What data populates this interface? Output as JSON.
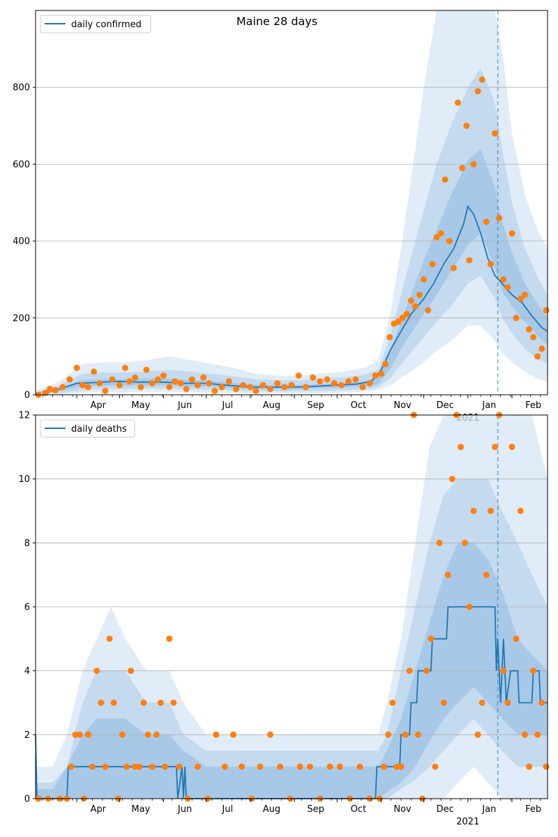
{
  "chart_data": [
    {
      "type": "line",
      "title": "Maine 28 days",
      "legend": "daily confirmed",
      "legend_position": "top-left",
      "grid": "horizontal",
      "ylim": [
        0,
        1000
      ],
      "yticks": [
        0,
        200,
        400,
        600,
        800
      ],
      "xlim": [
        "2020-03-03",
        "2021-02-26"
      ],
      "current_date_marker": "2021-01-22",
      "series_line": {
        "name": "daily confirmed",
        "color": "#1f77b4",
        "x": [
          "2020-03-10",
          "2020-03-20",
          "2020-04-01",
          "2020-04-15",
          "2020-05-01",
          "2020-05-15",
          "2020-06-01",
          "2020-06-15",
          "2020-07-01",
          "2020-07-15",
          "2020-08-01",
          "2020-08-15",
          "2020-09-01",
          "2020-09-15",
          "2020-10-01",
          "2020-10-15",
          "2020-10-25",
          "2020-11-01",
          "2020-11-08",
          "2020-11-15",
          "2020-11-22",
          "2020-12-01",
          "2020-12-08",
          "2020-12-15",
          "2020-12-22",
          "2020-12-29",
          "2021-01-01",
          "2021-01-05",
          "2021-01-10",
          "2021-01-15",
          "2021-01-20",
          "2021-01-25",
          "2021-02-01",
          "2021-02-08",
          "2021-02-15",
          "2021-02-22",
          "2021-02-26"
        ],
        "values": [
          5,
          15,
          30,
          32,
          35,
          33,
          33,
          30,
          30,
          25,
          20,
          20,
          20,
          22,
          25,
          28,
          35,
          65,
          120,
          165,
          210,
          250,
          290,
          340,
          380,
          445,
          490,
          470,
          420,
          355,
          310,
          290,
          260,
          240,
          205,
          175,
          165
        ]
      },
      "band_colors": [
        "#d6e6f4",
        "#bad4ec",
        "#9fc2e4"
      ],
      "bands": {
        "x": [
          "2020-03-03",
          "2020-03-20",
          "2020-04-05",
          "2020-04-20",
          "2020-05-05",
          "2020-05-20",
          "2020-06-05",
          "2020-06-20",
          "2020-07-05",
          "2020-07-20",
          "2020-08-05",
          "2020-08-20",
          "2020-09-05",
          "2020-09-20",
          "2020-10-05",
          "2020-10-20",
          "2020-10-30",
          "2020-11-08",
          "2020-11-15",
          "2020-11-22",
          "2020-12-01",
          "2020-12-10",
          "2020-12-20",
          "2021-01-01",
          "2021-01-10",
          "2021-01-20",
          "2021-01-25",
          "2021-02-01",
          "2021-02-10",
          "2021-02-20",
          "2021-02-26"
        ],
        "outer_low": [
          0,
          0,
          5,
          8,
          6,
          8,
          8,
          6,
          6,
          4,
          3,
          4,
          3,
          4,
          6,
          8,
          12,
          25,
          45,
          60,
          85,
          115,
          140,
          180,
          180,
          140,
          110,
          85,
          60,
          40,
          35
        ],
        "outer_high": [
          10,
          35,
          80,
          85,
          85,
          90,
          100,
          90,
          80,
          70,
          55,
          50,
          50,
          55,
          60,
          70,
          90,
          220,
          380,
          560,
          800,
          1000,
          1000,
          1000,
          1000,
          1000,
          900,
          680,
          520,
          420,
          380
        ],
        "mid_low": [
          2,
          4,
          12,
          16,
          15,
          16,
          16,
          14,
          13,
          11,
          9,
          9,
          9,
          10,
          12,
          14,
          20,
          45,
          80,
          110,
          150,
          190,
          230,
          290,
          310,
          250,
          200,
          160,
          120,
          90,
          80
        ],
        "mid_high": [
          6,
          25,
          55,
          58,
          58,
          60,
          65,
          60,
          55,
          48,
          40,
          38,
          38,
          42,
          45,
          52,
          65,
          160,
          260,
          360,
          480,
          600,
          700,
          800,
          850,
          760,
          640,
          500,
          380,
          300,
          260
        ],
        "inner_low": [
          4,
          10,
          22,
          24,
          24,
          25,
          25,
          22,
          21,
          18,
          15,
          15,
          15,
          17,
          19,
          22,
          28,
          70,
          120,
          160,
          210,
          260,
          320,
          390,
          420,
          330,
          270,
          230,
          190,
          150,
          130
        ],
        "inner_high": [
          5,
          18,
          38,
          40,
          40,
          42,
          42,
          38,
          36,
          31,
          26,
          25,
          25,
          28,
          31,
          35,
          45,
          120,
          190,
          260,
          350,
          430,
          520,
          610,
          640,
          540,
          450,
          370,
          290,
          230,
          200
        ]
      },
      "series_points": {
        "name": "observed",
        "color": "#ff7f0e",
        "x": [
          "2020-03-05",
          "2020-03-10",
          "2020-03-13",
          "2020-03-17",
          "2020-03-22",
          "2020-03-27",
          "2020-04-01",
          "2020-04-05",
          "2020-04-09",
          "2020-04-13",
          "2020-04-17",
          "2020-04-21",
          "2020-04-26",
          "2020-05-01",
          "2020-05-05",
          "2020-05-08",
          "2020-05-12",
          "2020-05-16",
          "2020-05-20",
          "2020-05-24",
          "2020-05-28",
          "2020-06-01",
          "2020-06-05",
          "2020-06-09",
          "2020-06-13",
          "2020-06-17",
          "2020-06-21",
          "2020-06-25",
          "2020-06-29",
          "2020-07-03",
          "2020-07-07",
          "2020-07-12",
          "2020-07-17",
          "2020-07-22",
          "2020-07-27",
          "2020-08-01",
          "2020-08-05",
          "2020-08-10",
          "2020-08-15",
          "2020-08-20",
          "2020-08-25",
          "2020-08-30",
          "2020-09-04",
          "2020-09-09",
          "2020-09-14",
          "2020-09-19",
          "2020-09-24",
          "2020-09-29",
          "2020-10-04",
          "2020-10-09",
          "2020-10-14",
          "2020-10-19",
          "2020-10-24",
          "2020-10-28",
          "2020-11-01",
          "2020-11-04",
          "2020-11-07",
          "2020-11-10",
          "2020-11-13",
          "2020-11-16",
          "2020-11-19",
          "2020-11-22",
          "2020-11-25",
          "2020-11-28",
          "2020-12-01",
          "2020-12-04",
          "2020-12-07",
          "2020-12-10",
          "2020-12-13",
          "2020-12-16",
          "2020-12-19",
          "2020-12-22",
          "2020-12-25",
          "2020-12-28",
          "2020-12-31",
          "2021-01-02",
          "2021-01-05",
          "2021-01-08",
          "2021-01-11",
          "2021-01-14",
          "2021-01-17",
          "2021-01-20",
          "2021-01-23",
          "2021-01-26",
          "2021-01-29",
          "2021-02-01",
          "2021-02-04",
          "2021-02-07",
          "2021-02-10",
          "2021-02-13",
          "2021-02-16",
          "2021-02-19",
          "2021-02-22",
          "2021-02-25"
        ],
        "values": [
          0,
          5,
          15,
          12,
          20,
          40,
          70,
          25,
          20,
          60,
          30,
          10,
          40,
          25,
          70,
          35,
          45,
          20,
          65,
          30,
          40,
          50,
          20,
          35,
          30,
          15,
          40,
          25,
          45,
          30,
          10,
          20,
          35,
          15,
          25,
          20,
          10,
          25,
          15,
          30,
          20,
          25,
          50,
          20,
          45,
          35,
          40,
          30,
          25,
          35,
          40,
          20,
          30,
          50,
          55,
          80,
          150,
          185,
          190,
          200,
          210,
          245,
          230,
          260,
          300,
          220,
          340,
          410,
          420,
          560,
          400,
          330,
          760,
          590,
          700,
          350,
          600,
          790,
          820,
          450,
          340,
          680,
          460,
          300,
          280,
          420,
          200,
          250,
          260,
          170,
          150,
          100,
          120,
          220
        ]
      },
      "x_ticks": [
        "Apr",
        "May",
        "Jun",
        "Jul",
        "Aug",
        "Sep",
        "Oct",
        "Nov",
        "Dec",
        "Jan",
        "Feb"
      ],
      "x_year_label": "2021"
    },
    {
      "type": "line",
      "title": "",
      "legend": "daily deaths",
      "legend_position": "top-left",
      "grid": "horizontal",
      "ylim": [
        0,
        12
      ],
      "yticks": [
        0,
        2,
        4,
        6,
        8,
        10,
        12
      ],
      "xlim": [
        "2020-03-03",
        "2021-02-26"
      ],
      "current_date_marker": "2021-01-22",
      "series_line": {
        "name": "daily deaths",
        "color": "#1f77b4",
        "x": [
          "2020-03-03",
          "2020-03-04",
          "2020-03-25",
          "2020-03-26",
          "2020-06-10",
          "2020-06-11",
          "2020-06-14",
          "2020-06-15",
          "2020-06-16",
          "2020-06-17",
          "2020-10-28",
          "2020-10-29",
          "2020-11-14",
          "2020-11-15",
          "2020-11-21",
          "2020-11-22",
          "2020-11-26",
          "2020-11-27",
          "2020-12-06",
          "2020-12-07",
          "2020-12-17",
          "2020-12-18",
          "2020-12-22",
          "2020-12-23",
          "2021-01-20",
          "2021-01-21",
          "2021-01-22",
          "2021-01-24",
          "2021-01-26",
          "2021-01-28",
          "2021-01-31",
          "2021-02-01",
          "2021-02-05",
          "2021-02-06",
          "2021-02-15",
          "2021-02-16",
          "2021-02-20",
          "2021-02-21",
          "2021-02-26"
        ],
        "values": [
          2,
          0,
          0,
          1,
          1,
          0,
          1,
          0,
          1,
          0,
          0,
          1,
          1,
          2,
          2,
          3,
          3,
          4,
          4,
          5,
          5,
          6,
          6,
          6,
          6,
          4,
          5,
          3,
          5,
          3,
          4,
          4,
          4,
          3,
          3,
          4,
          4,
          3,
          3
        ]
      },
      "band_colors": [
        "#d6e6f4",
        "#bad4ec",
        "#9fc2e4"
      ],
      "bands": {
        "x": [
          "2020-03-03",
          "2020-03-15",
          "2020-03-25",
          "2020-04-05",
          "2020-04-15",
          "2020-04-25",
          "2020-05-05",
          "2020-05-20",
          "2020-06-05",
          "2020-06-15",
          "2020-07-01",
          "2020-08-01",
          "2020-09-01",
          "2020-10-01",
          "2020-10-20",
          "2020-10-30",
          "2020-11-05",
          "2020-11-15",
          "2020-11-25",
          "2020-12-05",
          "2020-12-15",
          "2020-12-25",
          "2021-01-05",
          "2021-01-15",
          "2021-01-25",
          "2021-02-05",
          "2021-02-15",
          "2021-02-26"
        ],
        "outer_low": [
          0,
          0,
          0,
          0,
          0,
          0,
          0,
          0,
          0,
          0,
          0,
          0,
          0,
          0,
          0,
          0,
          0,
          0,
          0,
          0,
          0,
          0.5,
          1,
          0.5,
          0,
          0,
          0,
          0
        ],
        "outer_high": [
          1,
          1,
          2,
          4,
          5,
          6,
          5,
          4,
          4,
          3,
          2,
          2,
          2,
          2,
          2,
          2,
          3,
          5,
          8,
          11,
          12,
          12,
          12,
          12,
          12,
          12,
          12,
          10
        ],
        "mid_low": [
          0,
          0,
          0,
          0,
          0,
          0,
          0,
          0,
          0,
          0,
          0,
          0,
          0,
          0,
          0,
          0,
          0,
          0.3,
          0.6,
          1,
          1.5,
          2,
          2.5,
          2,
          1.5,
          1,
          1,
          1
        ],
        "mid_high": [
          0.5,
          0.5,
          1,
          3,
          4,
          4,
          4,
          3,
          3,
          2,
          1.5,
          1.5,
          1.5,
          1.5,
          1.5,
          1.5,
          2,
          4,
          6,
          8,
          9.5,
          10,
          10,
          10,
          9,
          8,
          7,
          6
        ],
        "inner_low": [
          0,
          0,
          0,
          0,
          0,
          0,
          0,
          0,
          0,
          0,
          0,
          0,
          0,
          0,
          0,
          0,
          0.2,
          0.5,
          1,
          1.8,
          2.5,
          3,
          3.5,
          3,
          2.5,
          2,
          2,
          2
        ],
        "inner_high": [
          0.3,
          0.3,
          1,
          2,
          2.5,
          2.5,
          2.5,
          2,
          2,
          1.5,
          1,
          1,
          1,
          1,
          1,
          1,
          1.5,
          2.5,
          4,
          5.5,
          7,
          8,
          8,
          7.5,
          6.5,
          5,
          4.5,
          4
        ]
      },
      "series_points": {
        "name": "observed",
        "color": "#ff7f0e",
        "x": [
          "2020-03-05",
          "2020-03-12",
          "2020-03-20",
          "2020-03-25",
          "2020-03-28",
          "2020-03-31",
          "2020-04-03",
          "2020-04-06",
          "2020-04-09",
          "2020-04-12",
          "2020-04-15",
          "2020-04-18",
          "2020-04-21",
          "2020-04-24",
          "2020-04-27",
          "2020-04-30",
          "2020-05-03",
          "2020-05-06",
          "2020-05-09",
          "2020-05-12",
          "2020-05-15",
          "2020-05-18",
          "2020-05-21",
          "2020-05-24",
          "2020-05-27",
          "2020-05-30",
          "2020-06-02",
          "2020-06-05",
          "2020-06-08",
          "2020-06-12",
          "2020-06-18",
          "2020-06-25",
          "2020-07-02",
          "2020-07-08",
          "2020-07-14",
          "2020-07-20",
          "2020-07-26",
          "2020-08-02",
          "2020-08-08",
          "2020-08-15",
          "2020-08-22",
          "2020-08-29",
          "2020-09-05",
          "2020-09-12",
          "2020-09-19",
          "2020-09-26",
          "2020-10-03",
          "2020-10-10",
          "2020-10-17",
          "2020-10-24",
          "2020-10-31",
          "2020-11-03",
          "2020-11-06",
          "2020-11-09",
          "2020-11-12",
          "2020-11-15",
          "2020-11-18",
          "2020-11-21",
          "2020-11-24",
          "2020-11-27",
          "2020-11-30",
          "2020-12-03",
          "2020-12-06",
          "2020-12-09",
          "2020-12-12",
          "2020-12-15",
          "2020-12-18",
          "2020-12-21",
          "2020-12-24",
          "2020-12-27",
          "2020-12-30",
          "2021-01-02",
          "2021-01-05",
          "2021-01-08",
          "2021-01-11",
          "2021-01-14",
          "2021-01-17",
          "2021-01-20",
          "2021-01-23",
          "2021-01-26",
          "2021-01-29",
          "2021-02-01",
          "2021-02-04",
          "2021-02-07",
          "2021-02-10",
          "2021-02-13",
          "2021-02-16",
          "2021-02-19",
          "2021-02-22",
          "2021-02-25"
        ],
        "values": [
          0,
          0,
          0,
          0,
          1,
          2,
          2,
          0,
          2,
          1,
          4,
          3,
          1,
          5,
          3,
          0,
          2,
          1,
          4,
          1,
          1,
          3,
          2,
          1,
          2,
          3,
          1,
          5,
          3,
          1,
          0,
          1,
          0,
          2,
          1,
          2,
          1,
          0,
          1,
          2,
          1,
          0,
          1,
          1,
          0,
          1,
          1,
          0,
          1,
          0,
          0,
          1,
          2,
          3,
          1,
          1,
          2,
          4,
          12,
          2,
          0,
          4,
          5,
          1,
          8,
          3,
          7,
          10,
          12,
          11,
          8,
          6,
          9,
          2,
          3,
          7,
          9,
          11,
          12,
          4,
          3,
          11,
          5,
          9,
          2,
          1,
          4,
          2,
          3,
          1
        ]
      },
      "x_ticks": [
        "Apr",
        "May",
        "Jun",
        "Jul",
        "Aug",
        "Sep",
        "Oct",
        "Nov",
        "Dec",
        "Jan",
        "Feb"
      ],
      "x_year_label": "2021"
    }
  ]
}
